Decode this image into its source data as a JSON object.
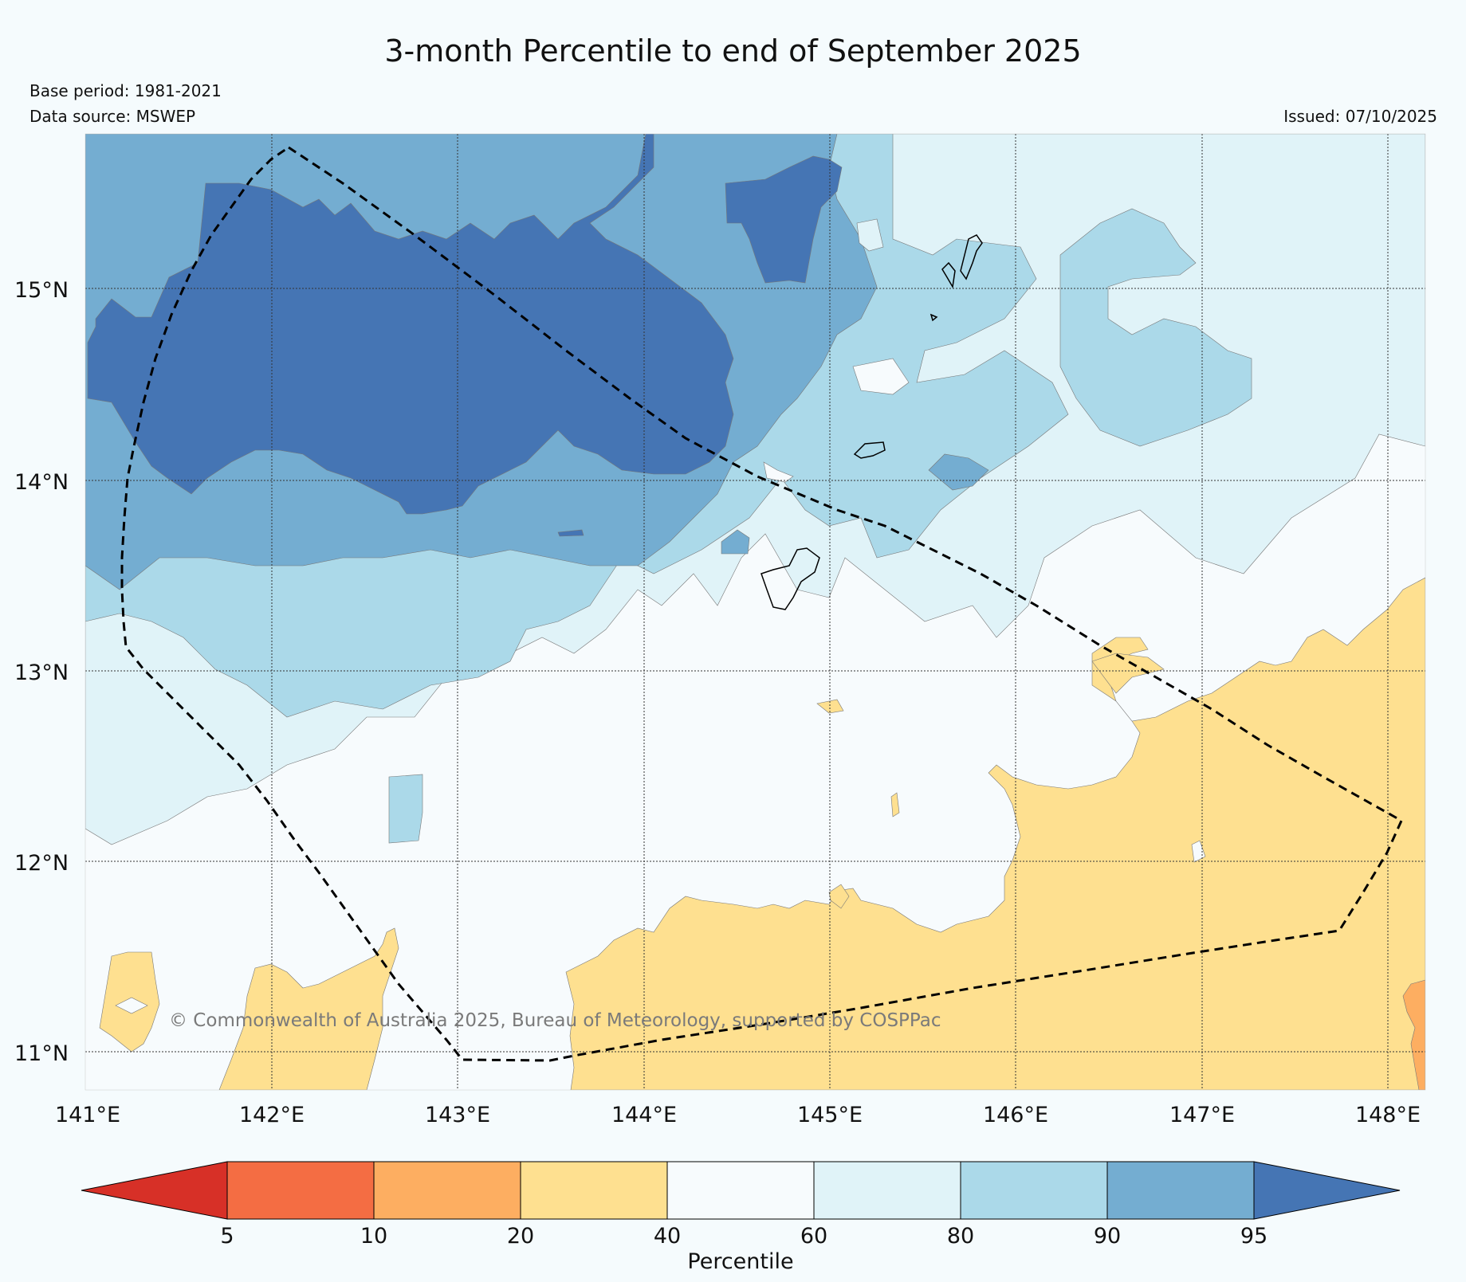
{
  "title": "3-month Percentile to end of September 2025",
  "base_period": "Base period: 1981-2021",
  "data_source": "Data source: MSWEP",
  "issued": "Issued: 07/10/2025",
  "copyright": "© Commonwealth of Australia 2025, Bureau of Meteorology, supported by COSPPac",
  "map": {
    "lon_ticks": [
      "141°E",
      "142°E",
      "143°E",
      "144°E",
      "145°E",
      "146°E",
      "147°E",
      "148°E"
    ],
    "lat_ticks": [
      "15°N",
      "14°N",
      "13°N",
      "12°N",
      "11°N"
    ]
  },
  "colorbar": {
    "label": "Percentile",
    "ticks": [
      "5",
      "10",
      "20",
      "40",
      "60",
      "80",
      "90",
      "95"
    ],
    "colors": [
      "#d73027",
      "#f46d43",
      "#fdae61",
      "#fee090",
      "#f7fbfd",
      "#e0f3f8",
      "#abd9e9",
      "#74add1",
      "#4575b4"
    ]
  },
  "legend_colors": {
    "p95_plus": "#4575b4",
    "p90_95": "#74add1",
    "p80_90": "#abd9e9",
    "p60_80": "#e0f3f8",
    "p40_60": "#f7fbfd",
    "p20_40": "#fee090",
    "p10_20": "#fdae61"
  }
}
